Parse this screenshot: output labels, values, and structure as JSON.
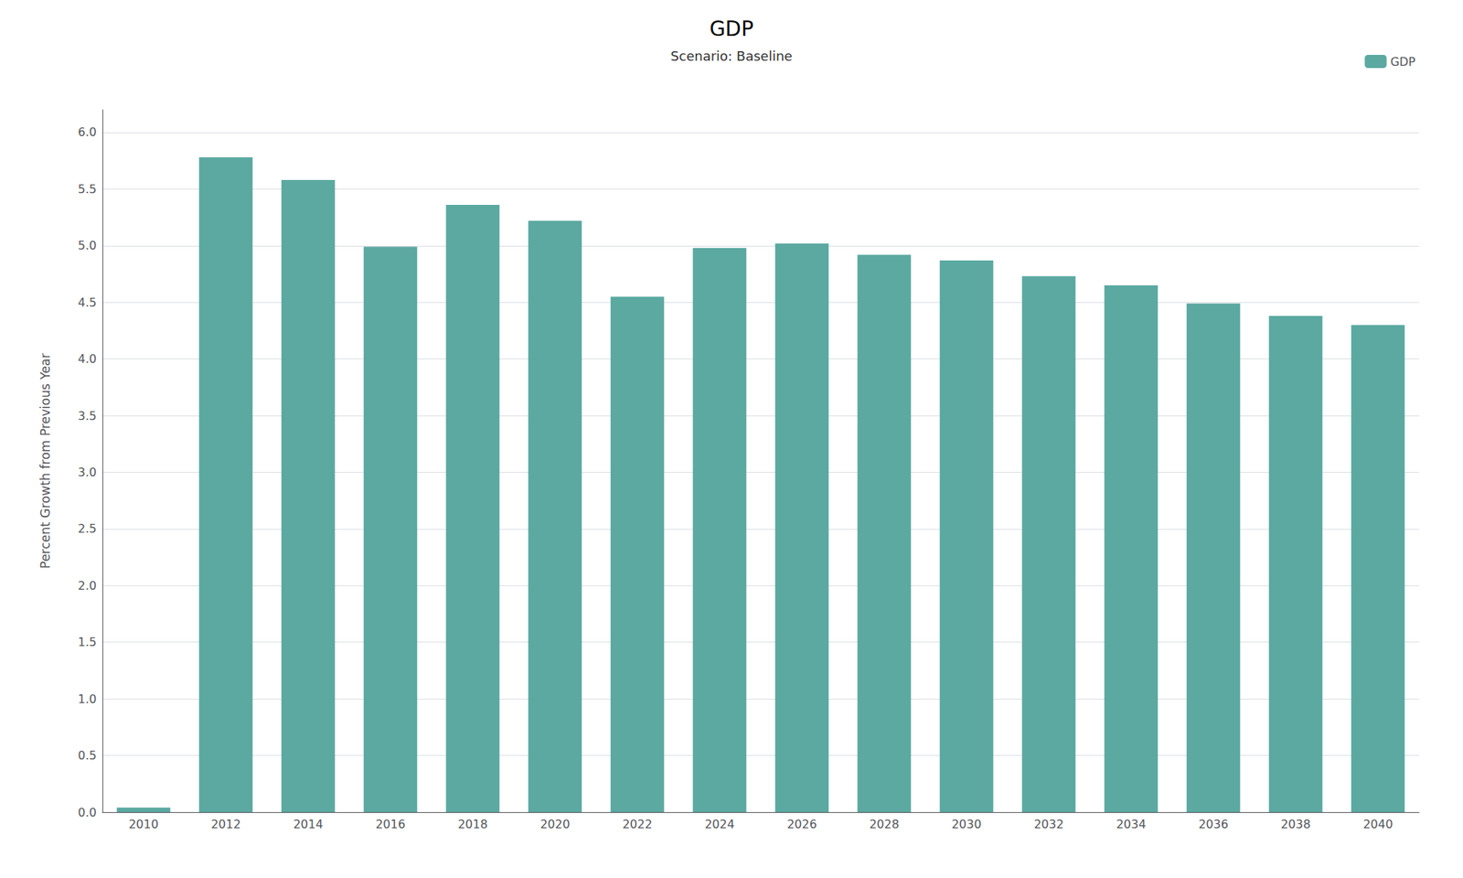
{
  "chart_data": {
    "type": "bar",
    "title": "GDP",
    "subtitle": "Scenario: Baseline",
    "ylabel": "Percent Growth from Previous Year",
    "categories": [
      "2010",
      "2012",
      "2014",
      "2016",
      "2018",
      "2020",
      "2022",
      "2024",
      "2026",
      "2028",
      "2030",
      "2032",
      "2034",
      "2036",
      "2038",
      "2040"
    ],
    "series": [
      {
        "name": "GDP",
        "color": "#5BA9A1",
        "values": [
          0.04,
          5.78,
          5.58,
          4.99,
          5.36,
          5.22,
          4.55,
          4.98,
          5.02,
          4.92,
          4.87,
          4.73,
          4.65,
          4.49,
          4.38,
          4.3
        ]
      }
    ],
    "ylim": [
      0,
      6.2
    ],
    "yticks": [
      {
        "value": 0,
        "label": "0.0"
      },
      0.5,
      {
        "value": 1,
        "label": "1.0"
      },
      1.5,
      {
        "value": 2,
        "label": "2.0"
      },
      2.5,
      {
        "value": 3,
        "label": "3.0"
      },
      3.5,
      {
        "value": 4,
        "label": "4.0"
      },
      4.5,
      {
        "value": 5,
        "label": "5.0"
      },
      5.5,
      {
        "value": 6,
        "label": "6.0"
      }
    ],
    "grid": true,
    "legend": "upper right"
  }
}
